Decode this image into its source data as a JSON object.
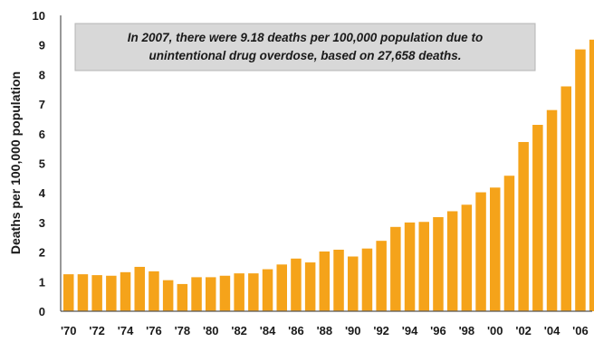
{
  "chart_data": {
    "type": "bar",
    "ylabel": "Deaths per 100,000 population",
    "xlabel": "",
    "ylim": [
      0,
      10
    ],
    "yticks": [
      0,
      1,
      2,
      3,
      4,
      5,
      6,
      7,
      8,
      9,
      10
    ],
    "xtick_labels": [
      "'70",
      "'72",
      "'74",
      "'76",
      "'78",
      "'80",
      "'82",
      "'84",
      "'86",
      "'88",
      "'90",
      "'92",
      "'94",
      "'96",
      "'98",
      "'00",
      "'02",
      "'04",
      "'06"
    ],
    "categories": [
      1970,
      1971,
      1972,
      1973,
      1974,
      1975,
      1976,
      1977,
      1978,
      1979,
      1980,
      1981,
      1982,
      1983,
      1984,
      1985,
      1986,
      1987,
      1988,
      1989,
      1990,
      1991,
      1992,
      1993,
      1994,
      1995,
      1996,
      1997,
      1998,
      1999,
      2000,
      2001,
      2002,
      2003,
      2004,
      2005,
      2006,
      2007
    ],
    "values": [
      1.25,
      1.25,
      1.22,
      1.2,
      1.32,
      1.5,
      1.35,
      1.05,
      0.92,
      1.15,
      1.15,
      1.2,
      1.28,
      1.28,
      1.42,
      1.58,
      1.78,
      1.65,
      2.02,
      2.08,
      1.85,
      2.12,
      2.38,
      2.85,
      3.0,
      3.02,
      3.18,
      3.38,
      3.6,
      4.02,
      4.18,
      4.58,
      5.72,
      6.3,
      6.8,
      7.6,
      8.85,
      9.18
    ],
    "bar_color": "#f5a31a",
    "grid": false,
    "annotation": {
      "line1": "In 2007, there were 9.18 deaths per 100,000 population due to",
      "line2": "unintentional drug overdose, based on 27,658 deaths."
    }
  }
}
